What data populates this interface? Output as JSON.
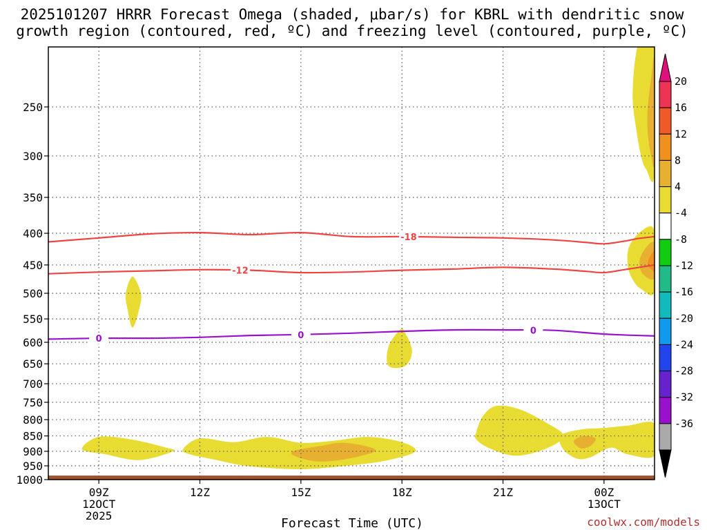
{
  "chart_data": {
    "type": "heatmap",
    "title_lines": [
      "2025101207 HRRR Forecast Omega (shaded, μbar/s) for KBRL with dendritic snow",
      "growth region (contoured, red, ºC) and freezing level (contoured, purple, ºC)"
    ],
    "xlabel": "Forecast Time (UTC)",
    "ylabel": "",
    "x_unit": "hours after 2025-10-12 06Z",
    "xlim": [
      1.5,
      19.5
    ],
    "ylim": [
      1000,
      200
    ],
    "y_scale": "log-pressure",
    "x_ticks": [
      {
        "x": 3,
        "lines": [
          "09Z",
          "12OCT",
          "2025"
        ]
      },
      {
        "x": 6,
        "lines": [
          "12Z"
        ]
      },
      {
        "x": 9,
        "lines": [
          "15Z"
        ]
      },
      {
        "x": 12,
        "lines": [
          "18Z"
        ]
      },
      {
        "x": 15,
        "lines": [
          "21Z"
        ]
      },
      {
        "x": 18,
        "lines": [
          "00Z",
          "13OCT"
        ]
      }
    ],
    "y_ticks": [
      250,
      300,
      350,
      400,
      450,
      500,
      550,
      600,
      650,
      700,
      750,
      800,
      850,
      900,
      950,
      1000
    ],
    "grid": true,
    "credit": "coolwx.com/models",
    "colorbar": {
      "levels": [
        {
          "label": "20",
          "color": "#ee3355"
        },
        {
          "label": "16",
          "color": "#f05a28"
        },
        {
          "label": "12",
          "color": "#f0901e"
        },
        {
          "label": "8",
          "color": "#e8b030"
        },
        {
          "label": "4",
          "color": "#e8dc32"
        },
        {
          "label": "-4",
          "color": "#ffffff"
        },
        {
          "label": "-8",
          "color": "#11cc11"
        },
        {
          "label": "-12",
          "color": "#22bb88"
        },
        {
          "label": "-16",
          "color": "#11bbbb"
        },
        {
          "label": "-20",
          "color": "#1199ee"
        },
        {
          "label": "-24",
          "color": "#2244ee"
        },
        {
          "label": "-28",
          "color": "#6622cc"
        },
        {
          "label": "-32",
          "color": "#9911cc"
        },
        {
          "label": "-36",
          "color": "#aaaaaa"
        }
      ],
      "top_arrow_color": "#e0107a",
      "bottom_arrow_color": "#000000"
    },
    "ground_color": "#a0522d",
    "contours": [
      {
        "name": "dgz-minus18",
        "color": "#ee4444",
        "label": "-18",
        "label_at": 12.2,
        "points": [
          [
            1.5,
            413
          ],
          [
            3,
            407
          ],
          [
            4.5,
            401
          ],
          [
            6,
            399
          ],
          [
            7.5,
            402
          ],
          [
            9,
            399
          ],
          [
            10.5,
            405
          ],
          [
            12,
            405
          ],
          [
            13.5,
            406
          ],
          [
            15,
            407
          ],
          [
            16.5,
            410
          ],
          [
            17.5,
            414
          ],
          [
            18,
            416
          ],
          [
            18.6,
            412
          ],
          [
            19,
            408
          ],
          [
            19.5,
            405
          ]
        ]
      },
      {
        "name": "dgz-minus12",
        "color": "#ee4444",
        "label": "-12",
        "label_at": 7.2,
        "points": [
          [
            1.5,
            465
          ],
          [
            3,
            462
          ],
          [
            4.5,
            460
          ],
          [
            6,
            458
          ],
          [
            7.5,
            459
          ],
          [
            9,
            463
          ],
          [
            10.5,
            462
          ],
          [
            12,
            459
          ],
          [
            13.5,
            457
          ],
          [
            15,
            454
          ],
          [
            16.5,
            457
          ],
          [
            17.5,
            461
          ],
          [
            18,
            463
          ],
          [
            18.6,
            458
          ],
          [
            19.5,
            450
          ]
        ]
      },
      {
        "name": "freezing-level-0",
        "color": "#9911cc",
        "label": "0",
        "label_at": [
          3,
          9,
          15.9
        ],
        "points": [
          [
            1.5,
            593
          ],
          [
            3,
            591
          ],
          [
            4.5,
            591
          ],
          [
            6,
            589
          ],
          [
            7.5,
            585
          ],
          [
            9,
            583
          ],
          [
            10.5,
            580
          ],
          [
            12,
            576
          ],
          [
            13.5,
            573
          ],
          [
            15,
            573
          ],
          [
            16.5,
            574
          ],
          [
            18,
            582
          ],
          [
            19.5,
            586
          ]
        ]
      }
    ],
    "omega_regions": [
      {
        "name": "omega-top-right",
        "level": 4,
        "points": [
          [
            19.5,
            185
          ],
          [
            19.2,
            185
          ],
          [
            18.95,
            205
          ],
          [
            18.85,
            240
          ],
          [
            18.95,
            270
          ],
          [
            19.1,
            300
          ],
          [
            19.25,
            315
          ],
          [
            19.5,
            318
          ]
        ]
      },
      {
        "name": "omega-top-right-core",
        "level": 8,
        "points": [
          [
            19.5,
            210
          ],
          [
            19.4,
            225
          ],
          [
            19.3,
            250
          ],
          [
            19.3,
            275
          ],
          [
            19.4,
            300
          ],
          [
            19.5,
            305
          ]
        ]
      },
      {
        "name": "omega-mid-right",
        "level": 4,
        "points": [
          [
            19.5,
            397
          ],
          [
            19.1,
            397
          ],
          [
            18.75,
            420
          ],
          [
            18.7,
            450
          ],
          [
            18.85,
            475
          ],
          [
            19.1,
            492
          ],
          [
            19.5,
            496
          ]
        ]
      },
      {
        "name": "omega-mid-right-core",
        "level": 8,
        "points": [
          [
            19.5,
            415
          ],
          [
            19.2,
            425
          ],
          [
            19.05,
            445
          ],
          [
            19.15,
            465
          ],
          [
            19.5,
            472
          ]
        ]
      },
      {
        "name": "omega-mid-right-peak",
        "level": 12,
        "points": [
          [
            19.5,
            428
          ],
          [
            19.35,
            438
          ],
          [
            19.3,
            450
          ],
          [
            19.45,
            460
          ],
          [
            19.5,
            460
          ]
        ]
      },
      {
        "name": "omega-spike-10z",
        "level": 4,
        "points": [
          [
            4.0,
            470
          ],
          [
            3.8,
            500
          ],
          [
            3.85,
            530
          ],
          [
            4.0,
            568
          ],
          [
            4.2,
            530
          ],
          [
            4.25,
            500
          ]
        ]
      },
      {
        "name": "omega-blob-18z",
        "level": 4,
        "points": [
          [
            11.95,
            572
          ],
          [
            11.6,
            610
          ],
          [
            11.6,
            655
          ],
          [
            12.1,
            655
          ],
          [
            12.3,
            620
          ],
          [
            12.1,
            580
          ]
        ]
      },
      {
        "name": "omega-low-left",
        "level": 4,
        "points": [
          [
            2.5,
            893
          ],
          [
            3,
            853
          ],
          [
            4,
            862
          ],
          [
            5,
            888
          ],
          [
            5.2,
            900
          ],
          [
            4.2,
            930
          ],
          [
            3.2,
            910
          ]
        ]
      },
      {
        "name": "omega-low-mid",
        "level": 4,
        "points": [
          [
            5.5,
            893
          ],
          [
            6,
            858
          ],
          [
            7,
            870
          ],
          [
            8,
            853
          ],
          [
            9,
            872
          ],
          [
            10,
            865
          ],
          [
            11,
            853
          ],
          [
            12,
            870
          ],
          [
            12.4,
            900
          ],
          [
            11.6,
            930
          ],
          [
            10.5,
            948
          ],
          [
            9,
            962
          ],
          [
            7.5,
            952
          ],
          [
            6.5,
            930
          ],
          [
            5.7,
            910
          ]
        ]
      },
      {
        "name": "omega-low-mid-core",
        "level": 8,
        "points": [
          [
            8.8,
            898
          ],
          [
            9.6,
            882
          ],
          [
            10.2,
            872
          ],
          [
            10.9,
            882
          ],
          [
            11.2,
            900
          ],
          [
            10.4,
            925
          ],
          [
            9.5,
            935
          ],
          [
            8.8,
            915
          ]
        ]
      },
      {
        "name": "omega-low-right-a",
        "level": 4,
        "points": [
          [
            14.2,
            840
          ],
          [
            14.4,
            790
          ],
          [
            14.8,
            760
          ],
          [
            15.5,
            770
          ],
          [
            16.3,
            810
          ],
          [
            16.8,
            850
          ],
          [
            16.3,
            890
          ],
          [
            15.4,
            915
          ],
          [
            14.6,
            890
          ],
          [
            14.2,
            860
          ]
        ]
      },
      {
        "name": "omega-low-right-b",
        "level": 4,
        "points": [
          [
            16.7,
            850
          ],
          [
            17.3,
            830
          ],
          [
            18,
            825
          ],
          [
            18.7,
            818
          ],
          [
            19.5,
            812
          ],
          [
            19.5,
            915
          ],
          [
            18.7,
            910
          ],
          [
            18.2,
            888
          ],
          [
            17.6,
            920
          ],
          [
            17.2,
            925
          ],
          [
            16.8,
            895
          ]
        ]
      },
      {
        "name": "omega-low-right-core",
        "level": 8,
        "points": [
          [
            17.1,
            866
          ],
          [
            17.4,
            850
          ],
          [
            17.75,
            858
          ],
          [
            17.6,
            882
          ],
          [
            17.3,
            890
          ]
        ]
      }
    ]
  }
}
